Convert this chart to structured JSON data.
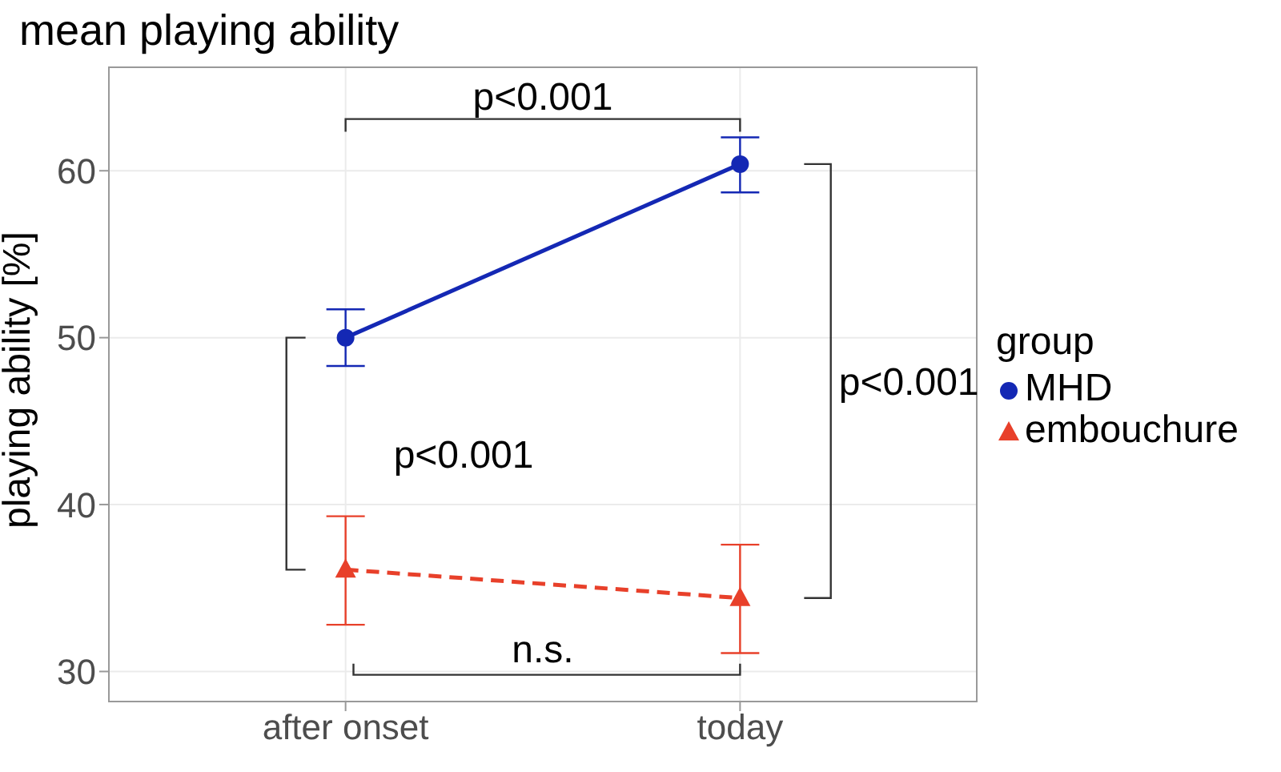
{
  "chart_data": {
    "type": "line",
    "title": "mean playing ability",
    "ylabel": "playing ability [%]",
    "legend_title": "group",
    "categories": [
      "after onset",
      "today"
    ],
    "series": [
      {
        "name": "MHD",
        "color": "#1428b4",
        "values": [
          50.0,
          60.4
        ],
        "errors": [
          [
            48.3,
            51.7
          ],
          [
            58.7,
            62.0
          ]
        ],
        "marker": "circle",
        "line_style": "solid"
      },
      {
        "name": "embouchure",
        "color": "#e8402a",
        "values": [
          36.1,
          34.4
        ],
        "errors": [
          [
            32.8,
            39.3
          ],
          [
            31.1,
            37.6
          ]
        ],
        "marker": "triangle",
        "line_style": "dashed"
      }
    ],
    "ylim": [
      28.2,
      66.2
    ],
    "yticks": [
      30,
      40,
      50,
      60
    ],
    "grid": true,
    "legend": "right",
    "annotations": [
      "p<0.001",
      "p<0.001",
      "p<0.001",
      "n.s."
    ]
  }
}
